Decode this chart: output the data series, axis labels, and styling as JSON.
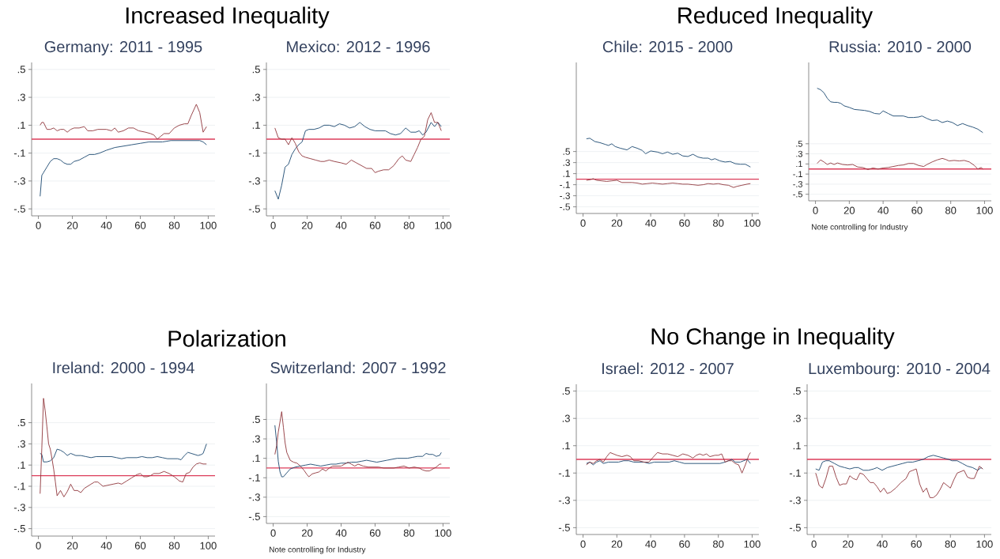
{
  "chart_data": [
    {
      "type": "line",
      "title": "Increased Inequality",
      "subtitle": "Germany: 2011 - 1995",
      "xlim": [
        -4,
        104
      ],
      "ylim": [
        -0.55,
        0.55
      ],
      "xticks": [
        0,
        20,
        40,
        60,
        80,
        100
      ],
      "yticks": [
        {
          "value": -0.5,
          "label": "-.5"
        },
        {
          "value": -0.3,
          "label": "-.3"
        },
        {
          "value": -0.1,
          "label": "-.1"
        },
        {
          "value": 0.1,
          "label": ".1"
        },
        {
          "value": 0.3,
          "label": ".3"
        },
        {
          "value": 0.5,
          "label": ".5"
        }
      ],
      "grid": "y",
      "marker": "none",
      "line_style": "solid",
      "ref_lines": [
        {
          "axis": "y",
          "value": 0,
          "color": "#dc3c5a"
        }
      ],
      "series": [
        {
          "color": "#1a476f",
          "x": [
            1,
            2,
            3,
            5,
            7,
            9,
            11,
            13,
            15,
            17,
            19,
            21,
            24,
            27,
            30,
            33,
            36,
            40,
            45,
            50,
            55,
            60,
            65,
            68,
            70,
            73,
            78,
            82,
            86,
            90,
            93,
            95,
            97,
            99
          ],
          "values": [
            -0.41,
            -0.26,
            -0.24,
            -0.2,
            -0.16,
            -0.14,
            -0.14,
            -0.15,
            -0.17,
            -0.18,
            -0.18,
            -0.16,
            -0.15,
            -0.13,
            -0.11,
            -0.11,
            -0.1,
            -0.08,
            -0.06,
            -0.05,
            -0.04,
            -0.03,
            -0.02,
            -0.02,
            -0.02,
            -0.02,
            -0.01,
            -0.01,
            -0.01,
            -0.01,
            -0.01,
            -0.01,
            -0.02,
            -0.04
          ]
        },
        {
          "color": "#90353b",
          "x": [
            1,
            2,
            3,
            5,
            7,
            9,
            11,
            13,
            15,
            17,
            19,
            21,
            24,
            27,
            29,
            32,
            35,
            38,
            40,
            43,
            45,
            47,
            50,
            53,
            56,
            59,
            63,
            66,
            68,
            70,
            72,
            74,
            77,
            80,
            83,
            86,
            88,
            90,
            93,
            95,
            97,
            99
          ],
          "values": [
            0.1,
            0.12,
            0.12,
            0.07,
            0.07,
            0.08,
            0.06,
            0.07,
            0.07,
            0.05,
            0.07,
            0.08,
            0.08,
            0.09,
            0.06,
            0.06,
            0.07,
            0.07,
            0.07,
            0.06,
            0.08,
            0.05,
            0.06,
            0.08,
            0.08,
            0.06,
            0.05,
            0.04,
            0.03,
            0,
            0.02,
            0.04,
            0.04,
            0.08,
            0.1,
            0.11,
            0.11,
            0.17,
            0.25,
            0.19,
            0.05,
            0.09
          ]
        }
      ]
    },
    {
      "type": "line",
      "subtitle": "Mexico: 2012 - 1996",
      "xlim": [
        -4,
        104
      ],
      "ylim": [
        -0.55,
        0.55
      ],
      "xticks": [
        0,
        20,
        40,
        60,
        80,
        100
      ],
      "yticks": [
        {
          "value": -0.5,
          "label": "-.5"
        },
        {
          "value": -0.3,
          "label": "-.3"
        },
        {
          "value": -0.1,
          "label": "-.1"
        },
        {
          "value": 0.1,
          "label": ".1"
        },
        {
          "value": 0.3,
          "label": ".3"
        },
        {
          "value": 0.5,
          "label": ".5"
        }
      ],
      "grid": "y",
      "marker": "none",
      "line_style": "solid",
      "ref_lines": [
        {
          "axis": "y",
          "value": 0,
          "color": "#dc3c5a"
        }
      ],
      "series": [
        {
          "color": "#1a476f",
          "x": [
            1,
            3,
            5,
            7,
            9,
            11,
            13,
            15,
            17,
            19,
            21,
            24,
            27,
            30,
            33,
            36,
            39,
            42,
            45,
            48,
            51,
            54,
            57,
            60,
            63,
            66,
            69,
            72,
            75,
            78,
            81,
            84,
            86,
            88,
            90,
            93,
            95,
            97,
            99
          ],
          "values": [
            -0.37,
            -0.43,
            -0.33,
            -0.2,
            -0.18,
            -0.11,
            -0.07,
            -0.04,
            -0.02,
            0.06,
            0.07,
            0.07,
            0.08,
            0.1,
            0.1,
            0.09,
            0.11,
            0.1,
            0.08,
            0.09,
            0.12,
            0.09,
            0.07,
            0.06,
            0.06,
            0.06,
            0.04,
            0.03,
            0.04,
            0.08,
            0.05,
            0.05,
            0.06,
            0.03,
            0.05,
            0.12,
            0.09,
            0.12,
            0.09
          ]
        },
        {
          "color": "#90353b",
          "x": [
            1,
            3,
            5,
            7,
            9,
            11,
            13,
            15,
            17,
            19,
            22,
            25,
            28,
            30,
            33,
            36,
            40,
            43,
            46,
            49,
            52,
            55,
            58,
            60,
            62,
            65,
            68,
            71,
            74,
            76,
            78,
            81,
            83,
            85,
            87,
            89,
            91,
            93,
            95,
            97,
            99
          ],
          "values": [
            0.08,
            0.01,
            0,
            0,
            -0.04,
            0.01,
            -0.03,
            -0.09,
            -0.12,
            -0.13,
            -0.14,
            -0.15,
            -0.16,
            -0.16,
            -0.15,
            -0.16,
            -0.17,
            -0.18,
            -0.15,
            -0.17,
            -0.19,
            -0.21,
            -0.21,
            -0.24,
            -0.23,
            -0.22,
            -0.22,
            -0.19,
            -0.14,
            -0.12,
            -0.15,
            -0.16,
            -0.11,
            -0.06,
            0,
            0.02,
            0.14,
            0.19,
            0.12,
            0.12,
            0.06
          ]
        }
      ]
    },
    {
      "type": "line",
      "title": "Reduced Inequality",
      "subtitle": "Chile: 2015 - 2000",
      "xlim": [
        -4,
        104
      ],
      "ylim": [
        -0.62,
        2.11
      ],
      "xticks": [
        0,
        20,
        40,
        60,
        80,
        100
      ],
      "yticks": [
        {
          "value": -0.5,
          "label": "-.5"
        },
        {
          "value": -0.3,
          "label": "-.3"
        },
        {
          "value": -0.1,
          "label": "-.1"
        },
        {
          "value": 0.1,
          "label": ".1"
        },
        {
          "value": 0.3,
          "label": ".3"
        },
        {
          "value": 0.5,
          "label": ".5"
        }
      ],
      "grid": "y",
      "marker": "none",
      "line_style": "solid",
      "ref_lines": [
        {
          "axis": "y",
          "value": 0,
          "color": "#dc3c5a"
        }
      ],
      "series": [
        {
          "color": "#1a476f",
          "x": [
            2,
            4,
            7,
            10,
            13,
            15,
            17,
            19,
            22,
            26,
            29,
            32,
            35,
            37,
            40,
            44,
            47,
            50,
            53,
            56,
            59,
            62,
            65,
            68,
            71,
            74,
            76,
            78,
            81,
            84,
            87,
            90,
            93,
            96,
            99
          ],
          "values": [
            0.73,
            0.74,
            0.68,
            0.66,
            0.63,
            0.61,
            0.64,
            0.59,
            0.56,
            0.53,
            0.59,
            0.56,
            0.52,
            0.46,
            0.51,
            0.49,
            0.46,
            0.49,
            0.45,
            0.47,
            0.42,
            0.41,
            0.45,
            0.4,
            0.38,
            0.38,
            0.35,
            0.37,
            0.33,
            0.31,
            0.32,
            0.28,
            0.27,
            0.27,
            0.22
          ]
        },
        {
          "color": "#90353b",
          "x": [
            2,
            4,
            6,
            8,
            11,
            14,
            17,
            20,
            23,
            26,
            29,
            32,
            35,
            38,
            41,
            44,
            47,
            50,
            53,
            56,
            59,
            62,
            65,
            68,
            71,
            74,
            77,
            80,
            83,
            86,
            89,
            91,
            94,
            97,
            99
          ],
          "values": [
            -0.02,
            -0.01,
            0.01,
            -0.02,
            -0.03,
            -0.04,
            -0.03,
            -0.02,
            -0.06,
            -0.06,
            -0.06,
            -0.07,
            -0.09,
            -0.08,
            -0.07,
            -0.08,
            -0.09,
            -0.08,
            -0.07,
            -0.08,
            -0.09,
            -0.09,
            -0.1,
            -0.11,
            -0.1,
            -0.08,
            -0.09,
            -0.08,
            -0.1,
            -0.11,
            -0.15,
            -0.13,
            -0.11,
            -0.09,
            -0.08
          ]
        }
      ]
    },
    {
      "type": "line",
      "subtitle": "Russia: 2010 - 2000",
      "annotations": [
        "Note controlling for Industry"
      ],
      "xlim": [
        -4,
        104
      ],
      "ylim": [
        -0.63,
        2.11
      ],
      "xticks": [
        0,
        20,
        40,
        60,
        80,
        100
      ],
      "yticks": [
        {
          "value": -0.5,
          "label": "-.5"
        },
        {
          "value": -0.3,
          "label": "-.3"
        },
        {
          "value": -0.1,
          "label": "-.1"
        },
        {
          "value": 0.1,
          "label": ".1"
        },
        {
          "value": 0.3,
          "label": ".3"
        },
        {
          "value": 0.5,
          "label": ".5"
        }
      ],
      "grid": "y",
      "marker": "none",
      "line_style": "solid",
      "ref_lines": [
        {
          "axis": "y",
          "value": 0,
          "color": "#dc3c5a"
        }
      ],
      "series": [
        {
          "color": "#1a476f",
          "x": [
            1,
            3,
            5,
            7,
            9,
            11,
            13,
            15,
            17,
            20,
            23,
            26,
            29,
            32,
            35,
            38,
            40,
            43,
            46,
            49,
            52,
            55,
            58,
            61,
            63,
            66,
            69,
            72,
            75,
            78,
            81,
            84,
            87,
            90,
            93,
            96,
            99
          ],
          "values": [
            1.6,
            1.57,
            1.51,
            1.4,
            1.33,
            1.32,
            1.32,
            1.3,
            1.25,
            1.22,
            1.18,
            1.17,
            1.16,
            1.14,
            1.1,
            1.09,
            1.15,
            1.1,
            1.05,
            1.05,
            1.05,
            1.02,
            1.02,
            1.03,
            1.05,
            1,
            0.96,
            0.97,
            0.92,
            0.95,
            0.92,
            0.86,
            0.9,
            0.86,
            0.83,
            0.79,
            0.72
          ]
        },
        {
          "color": "#90353b",
          "x": [
            1,
            3,
            5,
            7,
            9,
            11,
            13,
            16,
            19,
            22,
            25,
            28,
            31,
            34,
            37,
            40,
            43,
            46,
            49,
            52,
            55,
            58,
            61,
            64,
            66,
            69,
            72,
            75,
            77,
            79,
            82,
            85,
            88,
            91,
            94,
            96,
            98,
            99
          ],
          "values": [
            0.11,
            0.18,
            0.14,
            0.09,
            0.12,
            0.09,
            0.12,
            0.09,
            0.08,
            0.09,
            0.04,
            0.03,
            -0.01,
            0.02,
            0,
            0.02,
            0.03,
            0.05,
            0.07,
            0.08,
            0.11,
            0.11,
            0.07,
            0.05,
            0.09,
            0.14,
            0.18,
            0.21,
            0.19,
            0.16,
            0.17,
            0.16,
            0.17,
            0.14,
            0.07,
            0,
            0.03,
            0
          ]
        }
      ]
    },
    {
      "type": "line",
      "title": "Polarization",
      "subtitle": "Ireland: 2000 - 1994",
      "xlim": [
        -4,
        104
      ],
      "ylim": [
        -0.57,
        0.87
      ],
      "xticks": [
        0,
        20,
        40,
        60,
        80,
        100
      ],
      "yticks": [
        {
          "value": -0.5,
          "label": "-.5"
        },
        {
          "value": -0.3,
          "label": "-.3"
        },
        {
          "value": -0.1,
          "label": "-.1"
        },
        {
          "value": 0.1,
          "label": ".1"
        },
        {
          "value": 0.3,
          "label": ".3"
        },
        {
          "value": 0.5,
          "label": ".5"
        }
      ],
      "grid": "y",
      "marker": "none",
      "line_style": "solid",
      "ref_lines": [
        {
          "axis": "y",
          "value": 0,
          "color": "#dc3c5a"
        }
      ],
      "series": [
        {
          "color": "#1a476f",
          "x": [
            1,
            2,
            3,
            5,
            7,
            9,
            11,
            13,
            15,
            17,
            19,
            22,
            25,
            28,
            31,
            34,
            37,
            40,
            43,
            46,
            49,
            52,
            55,
            58,
            61,
            64,
            67,
            70,
            73,
            76,
            79,
            82,
            84,
            86,
            88,
            90,
            92,
            94,
            96,
            97,
            99
          ],
          "values": [
            0.21,
            0.2,
            0.13,
            0.13,
            0.14,
            0.17,
            0.25,
            0.24,
            0.22,
            0.19,
            0.21,
            0.19,
            0.19,
            0.18,
            0.17,
            0.18,
            0.18,
            0.18,
            0.18,
            0.17,
            0.16,
            0.17,
            0.17,
            0.17,
            0.18,
            0.17,
            0.17,
            0.18,
            0.17,
            0.16,
            0.16,
            0.16,
            0.15,
            0.19,
            0.22,
            0.21,
            0.2,
            0.19,
            0.2,
            0.21,
            0.3
          ]
        },
        {
          "color": "#90353b",
          "x": [
            1,
            2,
            3,
            4,
            5,
            6,
            7,
            8,
            9,
            10,
            11,
            13,
            15,
            17,
            19,
            21,
            23,
            25,
            27,
            30,
            33,
            35,
            38,
            41,
            44,
            47,
            49,
            52,
            55,
            58,
            60,
            62,
            64,
            66,
            68,
            71,
            74,
            77,
            80,
            83,
            85,
            87,
            89,
            91,
            93,
            95,
            97,
            99
          ],
          "values": [
            -0.17,
            0.26,
            0.73,
            0.61,
            0.46,
            0.3,
            0.25,
            0.16,
            0.06,
            -0.06,
            -0.19,
            -0.14,
            -0.2,
            -0.15,
            -0.08,
            -0.14,
            -0.14,
            -0.16,
            -0.12,
            -0.09,
            -0.06,
            -0.06,
            -0.1,
            -0.09,
            -0.08,
            -0.07,
            -0.08,
            -0.05,
            -0.02,
            0.01,
            0.02,
            -0.01,
            -0.01,
            0,
            0.02,
            0.02,
            0.04,
            0.02,
            -0.01,
            -0.05,
            -0.06,
            0.02,
            0.03,
            0.08,
            0.11,
            0.12,
            0.11,
            0.11
          ]
        }
      ]
    },
    {
      "type": "line",
      "subtitle": "Switzerland: 2007 - 1992",
      "annotations": [
        "Note controlling for Industry"
      ],
      "xlim": [
        -4,
        104
      ],
      "ylim": [
        -0.57,
        0.87
      ],
      "xticks": [
        0,
        20,
        40,
        60,
        80,
        100
      ],
      "yticks": [
        {
          "value": -0.5,
          "label": "-.5"
        },
        {
          "value": -0.3,
          "label": "-.3"
        },
        {
          "value": -0.1,
          "label": "-.1"
        },
        {
          "value": 0.1,
          "label": ".1"
        },
        {
          "value": 0.3,
          "label": ".3"
        },
        {
          "value": 0.5,
          "label": ".5"
        }
      ],
      "grid": "y",
      "marker": "none",
      "line_style": "solid",
      "ref_lines": [
        {
          "axis": "y",
          "value": 0,
          "color": "#dc3c5a"
        }
      ],
      "series": [
        {
          "color": "#1a476f",
          "x": [
            1,
            2,
            3,
            4,
            5,
            6,
            8,
            10,
            13,
            16,
            19,
            22,
            25,
            28,
            31,
            34,
            37,
            40,
            43,
            46,
            49,
            52,
            55,
            58,
            61,
            64,
            67,
            70,
            73,
            76,
            79,
            82,
            85,
            88,
            90,
            92,
            94,
            96,
            98,
            99
          ],
          "values": [
            0.44,
            0.27,
            0.07,
            -0.04,
            -0.09,
            -0.09,
            -0.05,
            -0.01,
            0.01,
            0.02,
            0.03,
            0.04,
            0.03,
            0.02,
            0.03,
            0.04,
            0.04,
            0.05,
            0.05,
            0.06,
            0.06,
            0.07,
            0.08,
            0.07,
            0.06,
            0.07,
            0.08,
            0.09,
            0.1,
            0.1,
            0.1,
            0.11,
            0.12,
            0.12,
            0.15,
            0.14,
            0.14,
            0.12,
            0.13,
            0.16
          ]
        },
        {
          "color": "#90353b",
          "x": [
            1,
            2,
            3,
            5,
            6,
            7,
            8,
            10,
            12,
            14,
            16,
            18,
            20,
            21,
            23,
            25,
            27,
            29,
            31,
            33,
            35,
            37,
            40,
            42,
            44,
            46,
            48,
            50,
            53,
            56,
            59,
            62,
            65,
            68,
            71,
            74,
            77,
            80,
            83,
            86,
            88,
            90,
            92,
            94,
            96,
            98,
            99
          ],
          "values": [
            0.14,
            0.23,
            0.37,
            0.58,
            0.42,
            0.26,
            0.16,
            0.08,
            0.06,
            0.05,
            0.02,
            -0.02,
            -0.07,
            -0.09,
            -0.06,
            -0.05,
            -0.04,
            -0.01,
            -0.03,
            0,
            0.02,
            0.02,
            0.02,
            0.04,
            0.06,
            0.04,
            0.02,
            0.04,
            0.02,
            0.01,
            0.01,
            0.01,
            0,
            0,
            0,
            0.01,
            0.02,
            0,
            0.01,
            0,
            -0.02,
            -0.03,
            -0.03,
            -0.01,
            0.01,
            0.04,
            0.04
          ]
        }
      ]
    },
    {
      "type": "line",
      "title": "No Change in Inequality",
      "subtitle": "Israel: 2012 - 2007",
      "xlim": [
        -4,
        104
      ],
      "ylim": [
        -0.55,
        0.55
      ],
      "xticks": [
        0,
        20,
        40,
        60,
        80,
        100
      ],
      "yticks": [
        {
          "value": -0.5,
          "label": "-.5"
        },
        {
          "value": -0.3,
          "label": "-.3"
        },
        {
          "value": -0.1,
          "label": "-.1"
        },
        {
          "value": 0.1,
          "label": ".1"
        },
        {
          "value": 0.3,
          "label": ".3"
        },
        {
          "value": 0.5,
          "label": ".5"
        }
      ],
      "grid": "y",
      "marker": "none",
      "line_style": "solid",
      "ref_lines": [
        {
          "axis": "y",
          "value": 0,
          "color": "#dc3c5a"
        }
      ],
      "series": [
        {
          "color": "#1a476f",
          "x": [
            2,
            4,
            6,
            8,
            10,
            12,
            15,
            18,
            21,
            24,
            27,
            30,
            33,
            36,
            39,
            42,
            45,
            48,
            51,
            54,
            57,
            60,
            63,
            66,
            69,
            72,
            75,
            78,
            81,
            84,
            86,
            88,
            90,
            93,
            95,
            97,
            99
          ],
          "values": [
            -0.03,
            -0.02,
            -0.04,
            -0.02,
            -0.01,
            -0.03,
            -0.02,
            -0.02,
            -0.02,
            -0.01,
            -0.01,
            -0.02,
            -0.02,
            -0.02,
            -0.03,
            -0.02,
            -0.02,
            -0.02,
            -0.02,
            -0.01,
            -0.02,
            -0.03,
            -0.03,
            -0.03,
            -0.03,
            -0.03,
            -0.03,
            -0.03,
            -0.03,
            -0.02,
            -0.01,
            0,
            -0.02,
            -0.02,
            -0.01,
            0,
            -0.03
          ]
        },
        {
          "color": "#90353b",
          "x": [
            2,
            4,
            6,
            8,
            10,
            12,
            14,
            16,
            18,
            20,
            23,
            26,
            28,
            30,
            33,
            36,
            39,
            41,
            44,
            47,
            50,
            53,
            56,
            59,
            62,
            65,
            67,
            69,
            71,
            73,
            75,
            78,
            80,
            82,
            84,
            86,
            88,
            90,
            92,
            94,
            96,
            98,
            99
          ],
          "values": [
            -0.04,
            -0.02,
            -0.03,
            -0.01,
            0,
            -0.02,
            0.02,
            0.05,
            0.04,
            0.03,
            0.02,
            0.03,
            0.02,
            -0.01,
            -0.01,
            -0.02,
            -0.02,
            0.01,
            0.05,
            0.04,
            0.04,
            0.03,
            0.02,
            0.04,
            0.03,
            0.01,
            0.03,
            0.04,
            0.03,
            0.04,
            0.02,
            0.03,
            0.03,
            0.04,
            -0.02,
            -0.01,
            -0.01,
            -0.03,
            -0.04,
            -0.1,
            -0.04,
            0.03,
            0.05
          ]
        }
      ]
    },
    {
      "type": "line",
      "subtitle": "Luxembourg: 2010 - 2004",
      "xlim": [
        -4,
        104
      ],
      "ylim": [
        -0.55,
        0.55
      ],
      "xticks": [
        0,
        20,
        40,
        60,
        80,
        100
      ],
      "yticks": [
        {
          "value": -0.5,
          "label": "-.5"
        },
        {
          "value": -0.3,
          "label": "-.3"
        },
        {
          "value": -0.1,
          "label": "-.1"
        },
        {
          "value": 0.1,
          "label": ".1"
        },
        {
          "value": 0.3,
          "label": ".3"
        },
        {
          "value": 0.5,
          "label": ".5"
        }
      ],
      "grid": "y",
      "marker": "none",
      "line_style": "solid",
      "ref_lines": [
        {
          "axis": "y",
          "value": 0,
          "color": "#dc3c5a"
        }
      ],
      "series": [
        {
          "color": "#1a476f",
          "x": [
            1,
            3,
            5,
            7,
            9,
            12,
            15,
            18,
            21,
            24,
            26,
            29,
            32,
            35,
            37,
            40,
            43,
            46,
            49,
            52,
            55,
            58,
            61,
            64,
            67,
            70,
            73,
            76,
            79,
            81,
            84,
            87,
            90,
            93,
            96,
            98,
            99
          ],
          "values": [
            -0.07,
            -0.08,
            -0.02,
            -0.01,
            -0.01,
            -0.03,
            -0.05,
            -0.06,
            -0.07,
            -0.06,
            -0.06,
            -0.08,
            -0.08,
            -0.07,
            -0.06,
            -0.08,
            -0.06,
            -0.05,
            -0.04,
            -0.03,
            -0.02,
            -0.02,
            -0.01,
            0,
            0.02,
            0.03,
            0.02,
            0.01,
            0,
            -0.01,
            -0.01,
            -0.03,
            -0.05,
            -0.06,
            -0.08,
            -0.06,
            -0.07
          ]
        },
        {
          "color": "#90353b",
          "x": [
            1,
            2,
            3,
            5,
            7,
            9,
            11,
            13,
            15,
            17,
            19,
            21,
            23,
            25,
            27,
            29,
            31,
            33,
            35,
            37,
            39,
            41,
            43,
            45,
            48,
            51,
            54,
            56,
            58,
            60,
            62,
            64,
            66,
            68,
            70,
            72,
            74,
            76,
            78,
            80,
            82,
            84,
            86,
            88,
            90,
            92,
            94,
            96,
            97,
            99
          ],
          "values": [
            -0.1,
            -0.14,
            -0.19,
            -0.21,
            -0.14,
            -0.05,
            -0.05,
            -0.13,
            -0.19,
            -0.18,
            -0.18,
            -0.12,
            -0.14,
            -0.15,
            -0.1,
            -0.11,
            -0.14,
            -0.17,
            -0.17,
            -0.2,
            -0.24,
            -0.21,
            -0.25,
            -0.24,
            -0.21,
            -0.17,
            -0.14,
            -0.09,
            -0.08,
            -0.07,
            -0.18,
            -0.24,
            -0.21,
            -0.28,
            -0.28,
            -0.26,
            -0.22,
            -0.17,
            -0.19,
            -0.21,
            -0.15,
            -0.1,
            -0.09,
            -0.08,
            -0.13,
            -0.14,
            -0.14,
            -0.08,
            -0.05,
            -0.07
          ]
        }
      ]
    }
  ]
}
